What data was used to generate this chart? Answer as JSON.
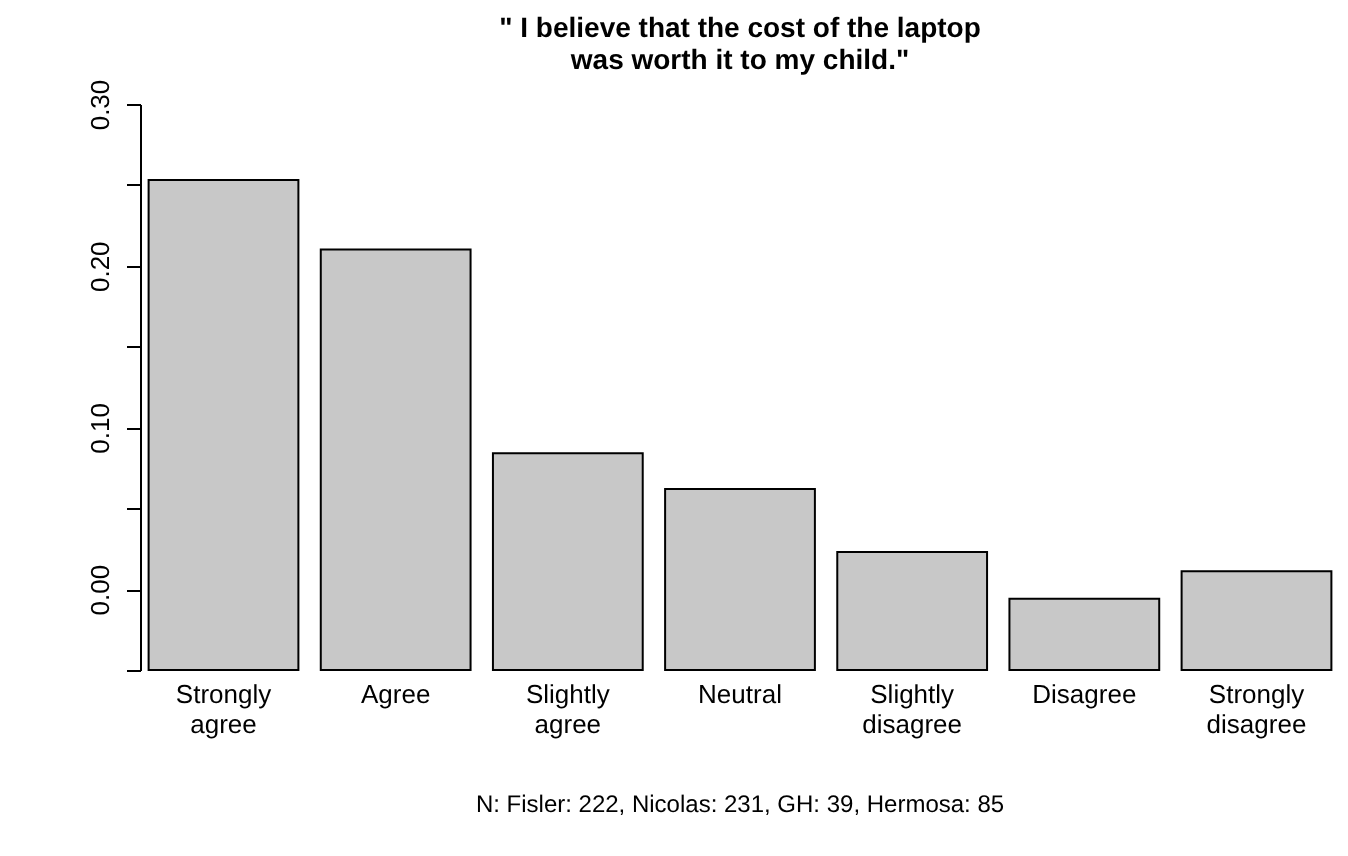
{
  "chart_data": {
    "type": "bar",
    "title": "\" I believe that the cost of the laptop\nwas worth it to my child.\"",
    "categories": [
      "Strongly agree",
      "Agree",
      "Slightly agree",
      "Neutral",
      "Slightly disagree",
      "Disagree",
      "Strongly disagree"
    ],
    "base": [
      -0.05,
      -0.05,
      -0.05,
      -0.05,
      -0.05,
      -0.05,
      -0.05
    ],
    "values": [
      0.303,
      0.26,
      0.134,
      0.112,
      0.073,
      0.044,
      0.061
    ],
    "color": "#c8c8c8",
    "ylim": [
      -0.05,
      0.3
    ],
    "yticks": [
      {
        "value": -0.05,
        "label": null
      },
      {
        "value": 0,
        "label": "0.00"
      },
      {
        "value": 0.05,
        "label": null
      },
      {
        "value": 0.1,
        "label": "0.10"
      },
      {
        "value": 0.15,
        "label": null
      },
      {
        "value": 0.2,
        "label": "0.20"
      },
      {
        "value": 0.25,
        "label": null
      },
      {
        "value": 0.3,
        "label": "0.30"
      }
    ],
    "grid": false,
    "annotations": [
      "N: Fisler: 222, Nicolas: 231, GH: 39, Hermosa: 85"
    ]
  }
}
